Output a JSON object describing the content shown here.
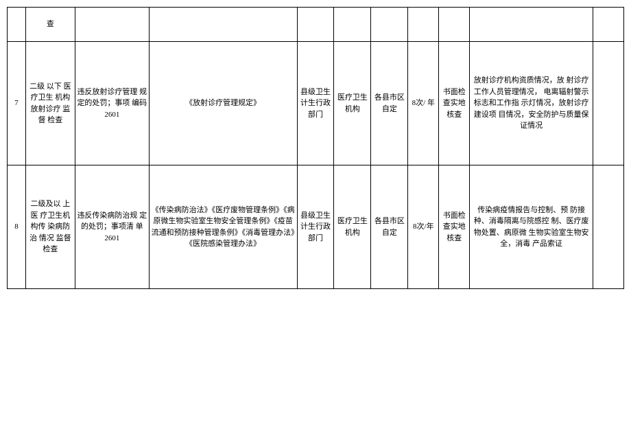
{
  "table": {
    "rows": [
      {
        "cells": [
          "",
          "查",
          "",
          "",
          "",
          "",
          "",
          "",
          "",
          "",
          ""
        ],
        "row_class": "row-partial"
      },
      {
        "cells": [
          "7",
          "二级 以下 医疗卫生 机构 放射诊疗 监督 检查",
          "违反放射诊疗管理 规定的处罚；事项 编码2601",
          "《放射诊疗管理规定》",
          "县级卫生计生行政部门",
          "医疗卫生机构",
          "各县市区自定",
          "8次/ 年",
          "书面检查实地核查",
          "放射诊疗机构资质情况，放 射诊疗工作人员管理情况， 电离辐射警示标志和工作指 示灯情况，放射诊疗建设项 目情况，安全防护与质量保 证情况",
          ""
        ],
        "row_class": "row-main"
      },
      {
        "cells": [
          "8",
          "二级及以 上医 疗卫生机 构传 染病防治 情况 监督检查",
          "违反传染病防治规 定的处罚；事项清 单2601",
          "《传染病防治法》《医疗废物管理条例》《病原微生物实验室生物安全管理条例》《疫苗流通和预防接种管理条例》《消毒管理办法》《医院感染管理办法》",
          "县级卫生计生行政部门",
          "医疗卫生机构",
          "各县市区自定",
          "8次/年",
          "书面检查实地核查",
          "传染病疫情报告与控制、预 防接种、消毒隔离与院感控 制、医疗废物处置、病原微 生物实验室生物安全，消毒 产品索证",
          ""
        ],
        "row_class": "row-main"
      }
    ]
  }
}
